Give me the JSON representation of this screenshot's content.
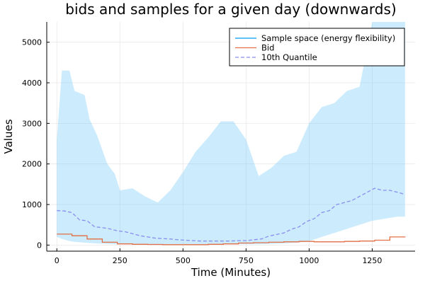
{
  "chart_data": {
    "type": "area",
    "title": "bids and samples for a given day (downwards)",
    "xlabel": "Time (Minutes)",
    "ylabel": "Values",
    "xlim": [
      -40,
      1420
    ],
    "ylim": [
      -150,
      5500
    ],
    "x_ticks": [
      0,
      250,
      500,
      750,
      1000,
      1250
    ],
    "y_ticks": [
      0,
      1000,
      2000,
      3000,
      4000,
      5000
    ],
    "grid": true,
    "legend_position": "top-right",
    "colors": {
      "sample_space": "#7fcdfb",
      "sample_space_line": "#009af9",
      "bid": "#e26f46",
      "quantile": "#8a8ef0"
    },
    "series": [
      {
        "name": "Sample space (energy flexibility)",
        "style": "band",
        "x": [
          0,
          20,
          50,
          70,
          110,
          130,
          160,
          200,
          230,
          250,
          300,
          350,
          400,
          450,
          500,
          550,
          600,
          650,
          700,
          750,
          800,
          850,
          900,
          950,
          1000,
          1050,
          1100,
          1150,
          1200,
          1250,
          1300,
          1350,
          1380
        ],
        "upper": [
          2600,
          4300,
          4300,
          3800,
          3700,
          3100,
          2700,
          2000,
          1750,
          1350,
          1400,
          1200,
          1050,
          1350,
          1800,
          2300,
          2650,
          3050,
          3050,
          2600,
          1700,
          1900,
          2200,
          2300,
          3000,
          3400,
          3500,
          3800,
          3900,
          5500,
          5500,
          5500,
          5500
        ],
        "lower": [
          200,
          150,
          100,
          80,
          60,
          50,
          40,
          30,
          20,
          20,
          20,
          20,
          20,
          20,
          20,
          20,
          20,
          20,
          20,
          20,
          20,
          30,
          40,
          60,
          100,
          200,
          300,
          400,
          500,
          600,
          650,
          700,
          700
        ]
      },
      {
        "name": "Bid",
        "style": "step",
        "x": [
          0,
          60,
          120,
          180,
          240,
          300,
          360,
          420,
          480,
          540,
          600,
          660,
          720,
          780,
          840,
          900,
          960,
          1020,
          1080,
          1140,
          1200,
          1260,
          1320,
          1380
        ],
        "values": [
          270,
          230,
          150,
          70,
          30,
          20,
          15,
          10,
          10,
          10,
          20,
          30,
          50,
          60,
          70,
          80,
          90,
          80,
          80,
          90,
          100,
          120,
          200,
          210
        ]
      },
      {
        "name": "10th Quantile",
        "style": "dashed",
        "x": [
          0,
          30,
          60,
          90,
          120,
          150,
          180,
          210,
          240,
          270,
          300,
          330,
          360,
          390,
          420,
          450,
          480,
          510,
          540,
          570,
          600,
          630,
          660,
          690,
          720,
          750,
          780,
          810,
          840,
          870,
          900,
          930,
          960,
          990,
          1020,
          1050,
          1080,
          1110,
          1140,
          1170,
          1200,
          1230,
          1260,
          1290,
          1320,
          1350,
          1380
        ],
        "values": [
          850,
          840,
          800,
          620,
          600,
          450,
          430,
          400,
          350,
          330,
          280,
          230,
          200,
          170,
          160,
          150,
          130,
          120,
          110,
          100,
          100,
          100,
          100,
          100,
          110,
          110,
          130,
          150,
          220,
          260,
          300,
          390,
          450,
          580,
          650,
          800,
          850,
          1000,
          1050,
          1100,
          1200,
          1300,
          1400,
          1350,
          1350,
          1300,
          1250
        ]
      }
    ]
  }
}
